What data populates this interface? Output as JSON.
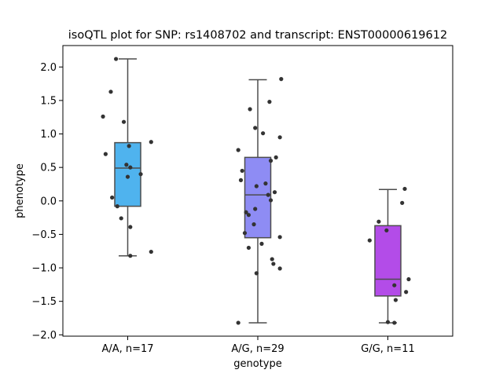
{
  "chart_data": {
    "type": "box",
    "title": "isoQTL plot for SNP: rs1408702 and transcript: ENST00000619612",
    "xlabel": "genotype",
    "ylabel": "phenotype",
    "ylim": [
      -2.02,
      2.32
    ],
    "yticks": [
      2.0,
      1.5,
      1.0,
      0.5,
      0.0,
      -0.5,
      -1.0,
      -1.5,
      -2.0
    ],
    "ytick_labels": [
      "2.0",
      "1.5",
      "1.0",
      "0.5",
      "0.0",
      "−0.5",
      "−1.0",
      "−1.5",
      "−2.0"
    ],
    "grid": false,
    "colors": {
      "box_edge": "#4d4d4d",
      "point": "#333333"
    },
    "categories": [
      {
        "label": "A/A, n=17",
        "color": "#4fb3ee",
        "q1": -0.08,
        "median": 0.49,
        "q3": 0.87,
        "whisker_low": -0.82,
        "whisker_high": 2.12,
        "points": [
          {
            "x": -0.09,
            "y": 2.12
          },
          {
            "x": -0.13,
            "y": 1.63
          },
          {
            "x": -0.19,
            "y": 1.26
          },
          {
            "x": -0.03,
            "y": 1.18
          },
          {
            "x": 0.18,
            "y": 0.88
          },
          {
            "x": 0.01,
            "y": 0.82
          },
          {
            "x": -0.17,
            "y": 0.7
          },
          {
            "x": -0.01,
            "y": 0.54
          },
          {
            "x": 0.02,
            "y": 0.5
          },
          {
            "x": 0.1,
            "y": 0.4
          },
          {
            "x": 0.0,
            "y": 0.36
          },
          {
            "x": -0.12,
            "y": 0.05
          },
          {
            "x": -0.08,
            "y": -0.08
          },
          {
            "x": -0.05,
            "y": -0.26
          },
          {
            "x": 0.02,
            "y": -0.39
          },
          {
            "x": 0.18,
            "y": -0.76
          },
          {
            "x": 0.02,
            "y": -0.82
          }
        ]
      },
      {
        "label": "A/G, n=29",
        "color": "#8e8cf4",
        "q1": -0.55,
        "median": 0.09,
        "q3": 0.65,
        "whisker_low": -1.82,
        "whisker_high": 1.81,
        "points": [
          {
            "x": 0.18,
            "y": 1.82
          },
          {
            "x": 0.09,
            "y": 1.48
          },
          {
            "x": -0.06,
            "y": 1.37
          },
          {
            "x": -0.02,
            "y": 1.09
          },
          {
            "x": 0.04,
            "y": 1.01
          },
          {
            "x": 0.17,
            "y": 0.95
          },
          {
            "x": -0.15,
            "y": 0.76
          },
          {
            "x": 0.14,
            "y": 0.65
          },
          {
            "x": 0.1,
            "y": 0.6
          },
          {
            "x": -0.12,
            "y": 0.45
          },
          {
            "x": -0.13,
            "y": 0.31
          },
          {
            "x": 0.06,
            "y": 0.26
          },
          {
            "x": -0.01,
            "y": 0.22
          },
          {
            "x": 0.13,
            "y": 0.13
          },
          {
            "x": 0.08,
            "y": 0.09
          },
          {
            "x": 0.1,
            "y": 0.01
          },
          {
            "x": -0.02,
            "y": -0.12
          },
          {
            "x": -0.09,
            "y": -0.17
          },
          {
            "x": -0.07,
            "y": -0.21
          },
          {
            "x": -0.03,
            "y": -0.35
          },
          {
            "x": -0.1,
            "y": -0.48
          },
          {
            "x": 0.17,
            "y": -0.54
          },
          {
            "x": 0.03,
            "y": -0.64
          },
          {
            "x": -0.07,
            "y": -0.7
          },
          {
            "x": 0.11,
            "y": -0.87
          },
          {
            "x": 0.12,
            "y": -0.94
          },
          {
            "x": 0.17,
            "y": -1.01
          },
          {
            "x": -0.01,
            "y": -1.08
          },
          {
            "x": -0.15,
            "y": -1.82
          }
        ]
      },
      {
        "label": "G/G, n=11",
        "color": "#b34ce8",
        "q1": -1.42,
        "median": -1.17,
        "q3": -0.37,
        "whisker_low": -1.82,
        "whisker_high": 0.17,
        "points": [
          {
            "x": 0.13,
            "y": 0.18
          },
          {
            "x": 0.11,
            "y": -0.03
          },
          {
            "x": -0.07,
            "y": -0.31
          },
          {
            "x": -0.01,
            "y": -0.44
          },
          {
            "x": -0.14,
            "y": -0.59
          },
          {
            "x": 0.16,
            "y": -1.17
          },
          {
            "x": 0.05,
            "y": -1.26
          },
          {
            "x": 0.14,
            "y": -1.36
          },
          {
            "x": 0.06,
            "y": -1.48
          },
          {
            "x": 0.0,
            "y": -1.81
          },
          {
            "x": 0.05,
            "y": -1.82
          }
        ]
      }
    ]
  }
}
